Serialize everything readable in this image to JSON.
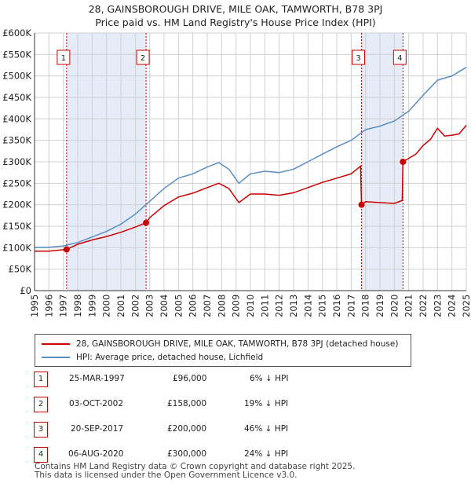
{
  "header": {
    "title_line1": "28, GAINSBOROUGH DRIVE, MILE OAK, TAMWORTH, B78 3PJ",
    "title_line2": "Price paid vs. HM Land Registry's House Price Index (HPI)"
  },
  "colors": {
    "price_line": "#cc0000",
    "hpi_line": "#5b8ec4",
    "shade": "#dce6f5",
    "marker_border": "#cc0000",
    "grid": "#d0d0d0"
  },
  "chart_data": {
    "type": "line",
    "title": "Price paid vs. HM Land Registry's House Price Index (HPI)",
    "x_range": [
      1995,
      2025
    ],
    "ylim": [
      0,
      600000
    ],
    "y_ticks": [
      0,
      50000,
      100000,
      150000,
      200000,
      250000,
      300000,
      350000,
      400000,
      450000,
      500000,
      550000,
      600000
    ],
    "y_tick_labels": [
      "£0",
      "£50K",
      "£100K",
      "£150K",
      "£200K",
      "£250K",
      "£300K",
      "£350K",
      "£400K",
      "£450K",
      "£500K",
      "£550K",
      "£600K"
    ],
    "x_ticks": [
      1995,
      1996,
      1997,
      1998,
      1999,
      2000,
      2001,
      2002,
      2003,
      2004,
      2005,
      2006,
      2007,
      2008,
      2009,
      2010,
      2011,
      2012,
      2013,
      2014,
      2015,
      2016,
      2017,
      2018,
      2019,
      2020,
      2021,
      2022,
      2023,
      2024,
      2025
    ],
    "grid": true,
    "series": [
      {
        "name": "28, GAINSBOROUGH DRIVE, MILE OAK, TAMWORTH, B78 3PJ (detached house)",
        "color": "#cc0000",
        "x": [
          1995.0,
          1996.0,
          1997.23,
          1998.0,
          1999.0,
          2000.0,
          2001.0,
          2002.0,
          2002.75,
          2003.0,
          2004.0,
          2005.0,
          2006.0,
          2007.0,
          2007.8,
          2008.5,
          2009.2,
          2010.0,
          2011.0,
          2012.0,
          2013.0,
          2014.0,
          2015.0,
          2016.0,
          2017.0,
          2017.65,
          2017.72,
          2018.0,
          2019.0,
          2020.0,
          2020.55,
          2020.6,
          2021.0,
          2021.5,
          2022.0,
          2022.5,
          2023.0,
          2023.5,
          2024.0,
          2024.5,
          2025.0
        ],
        "y": [
          92000,
          92000,
          96000,
          108000,
          118000,
          126000,
          136000,
          148000,
          158000,
          170000,
          198000,
          218000,
          227000,
          240000,
          250000,
          238000,
          205000,
          225000,
          225000,
          222000,
          228000,
          240000,
          252000,
          262000,
          272000,
          290000,
          200000,
          207000,
          205000,
          203000,
          210000,
          300000,
          308000,
          318000,
          338000,
          352000,
          378000,
          360000,
          362000,
          365000,
          385000
        ]
      },
      {
        "name": "HPI: Average price, detached house, Lichfield",
        "color": "#5b8ec4",
        "x": [
          1995.0,
          1996.0,
          1997.0,
          1998.0,
          1999.0,
          2000.0,
          2001.0,
          2002.0,
          2003.0,
          2004.0,
          2005.0,
          2006.0,
          2007.0,
          2007.8,
          2008.5,
          2009.2,
          2010.0,
          2011.0,
          2012.0,
          2013.0,
          2014.0,
          2015.0,
          2016.0,
          2017.0,
          2018.0,
          2019.0,
          2020.0,
          2021.0,
          2022.0,
          2023.0,
          2023.5,
          2024.0,
          2024.5,
          2025.0
        ],
        "y": [
          100000,
          101000,
          104000,
          112000,
          125000,
          138000,
          155000,
          178000,
          208000,
          238000,
          262000,
          272000,
          288000,
          298000,
          283000,
          250000,
          272000,
          278000,
          275000,
          283000,
          300000,
          318000,
          335000,
          350000,
          375000,
          383000,
          395000,
          418000,
          455000,
          490000,
          495000,
          500000,
          510000,
          520000
        ]
      }
    ],
    "sales": [
      {
        "label": "1",
        "x": 1997.23,
        "y": 96000
      },
      {
        "label": "2",
        "x": 2002.75,
        "y": 158000
      },
      {
        "label": "3",
        "x": 2017.72,
        "y": 200000
      },
      {
        "label": "4",
        "x": 2020.6,
        "y": 300000
      }
    ],
    "shaded_spans": [
      [
        1997.23,
        2002.75
      ],
      [
        2017.72,
        2020.6
      ]
    ]
  },
  "legend": {
    "items": [
      {
        "label": "28, GAINSBOROUGH DRIVE, MILE OAK, TAMWORTH, B78 3PJ (detached house)",
        "color": "#cc0000"
      },
      {
        "label": "HPI: Average price, detached house, Lichfield",
        "color": "#5b8ec4"
      }
    ]
  },
  "sales_table": [
    {
      "num": "1",
      "date": "25-MAR-1997",
      "price": "£96,000",
      "hpi": "6% ↓ HPI"
    },
    {
      "num": "2",
      "date": "03-OCT-2002",
      "price": "£158,000",
      "hpi": "19% ↓ HPI"
    },
    {
      "num": "3",
      "date": "20-SEP-2017",
      "price": "£200,000",
      "hpi": "46% ↓ HPI"
    },
    {
      "num": "4",
      "date": "06-AUG-2020",
      "price": "£300,000",
      "hpi": "24% ↓ HPI"
    }
  ],
  "footer": {
    "line1": "Contains HM Land Registry data © Crown copyright and database right 2025.",
    "line2": "This data is licensed under the Open Government Licence v3.0."
  }
}
